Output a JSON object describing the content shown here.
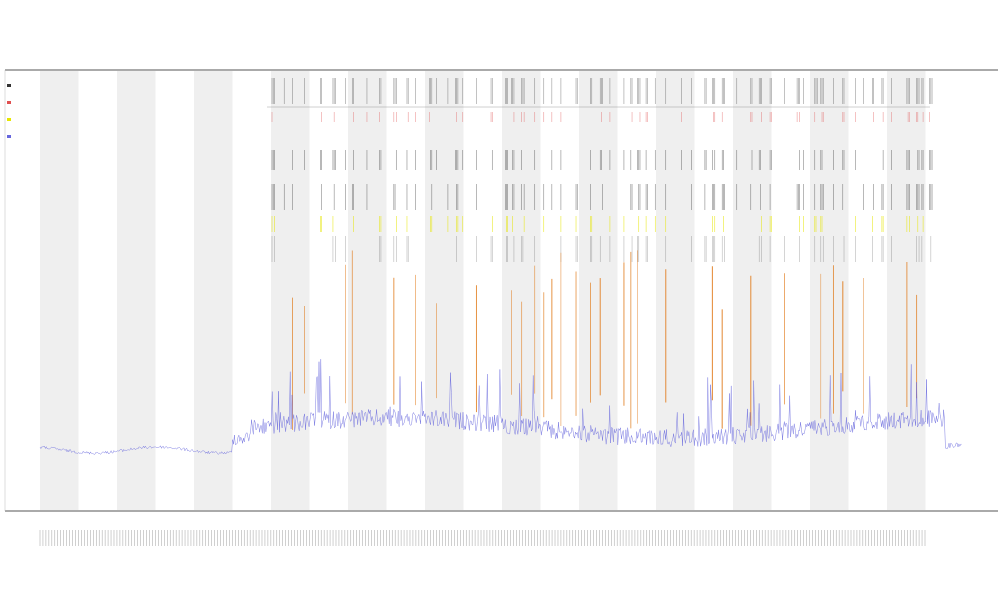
{
  "chart_data": {
    "type": "line",
    "title": "",
    "subtitle": "",
    "xlabel": "",
    "ylabel": "",
    "grid": false,
    "legend_placement": "top-left",
    "x_tick_count": 300,
    "series": [
      {
        "color": "#6666dd",
        "role": "main-trace"
      },
      {
        "color": "#e07a1a",
        "role": "orange-spikes"
      },
      {
        "color": "#e6e600",
        "role": "yellow-markers"
      },
      {
        "color": "#333333",
        "role": "black-markers"
      },
      {
        "color": "#e05050",
        "role": "red-markers"
      }
    ]
  },
  "colors": {
    "band": "#efefef",
    "axis": "#555555",
    "trace": "#6666dd",
    "spike": "#e07a1a",
    "marker_yellow": "#e6e600",
    "marker_black": "#333333",
    "marker_red": "#e05050"
  }
}
